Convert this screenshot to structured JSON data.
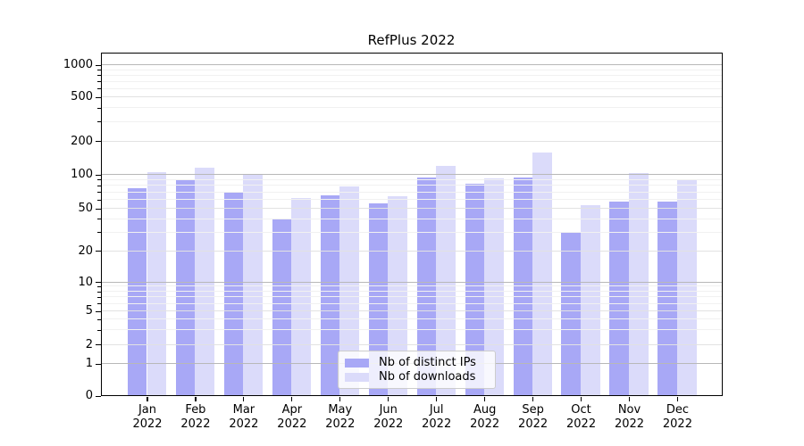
{
  "chart_data": {
    "type": "bar",
    "title": "RefPlus 2022",
    "categories": [
      "Jan",
      "Feb",
      "Mar",
      "Apr",
      "May",
      "Jun",
      "Jul",
      "Aug",
      "Sep",
      "Oct",
      "Nov",
      "Dec"
    ],
    "category_year": "2022",
    "series": [
      {
        "name": "Nb of distinct IPs",
        "color": "#a8a8f6",
        "values": [
          76,
          91,
          69,
          40,
          65,
          56,
          95,
          83,
          95,
          30,
          58,
          58
        ]
      },
      {
        "name": "Nb of downloads",
        "color": "#dbdbfa",
        "values": [
          106,
          116,
          100,
          62,
          78,
          64,
          120,
          92,
          157,
          54,
          103,
          89
        ]
      }
    ],
    "y_axis": {
      "scale": "symlog",
      "ticks": [
        0,
        1,
        2,
        5,
        10,
        20,
        50,
        100,
        200,
        500,
        1000
      ],
      "minor_ticks": [
        3,
        4,
        6,
        7,
        8,
        9,
        30,
        40,
        60,
        70,
        80,
        90,
        300,
        400,
        600,
        700,
        800,
        900
      ],
      "range": [
        0,
        1300
      ]
    },
    "xlabel": "",
    "ylabel": "",
    "grid": "horizontal",
    "legend_position": "lower-center"
  },
  "colors": {
    "decade_grid": "#b8b8b8",
    "sub_grid": "#e2e2e2",
    "minor_grid": "#f1f1f1",
    "axis": "#000000"
  }
}
